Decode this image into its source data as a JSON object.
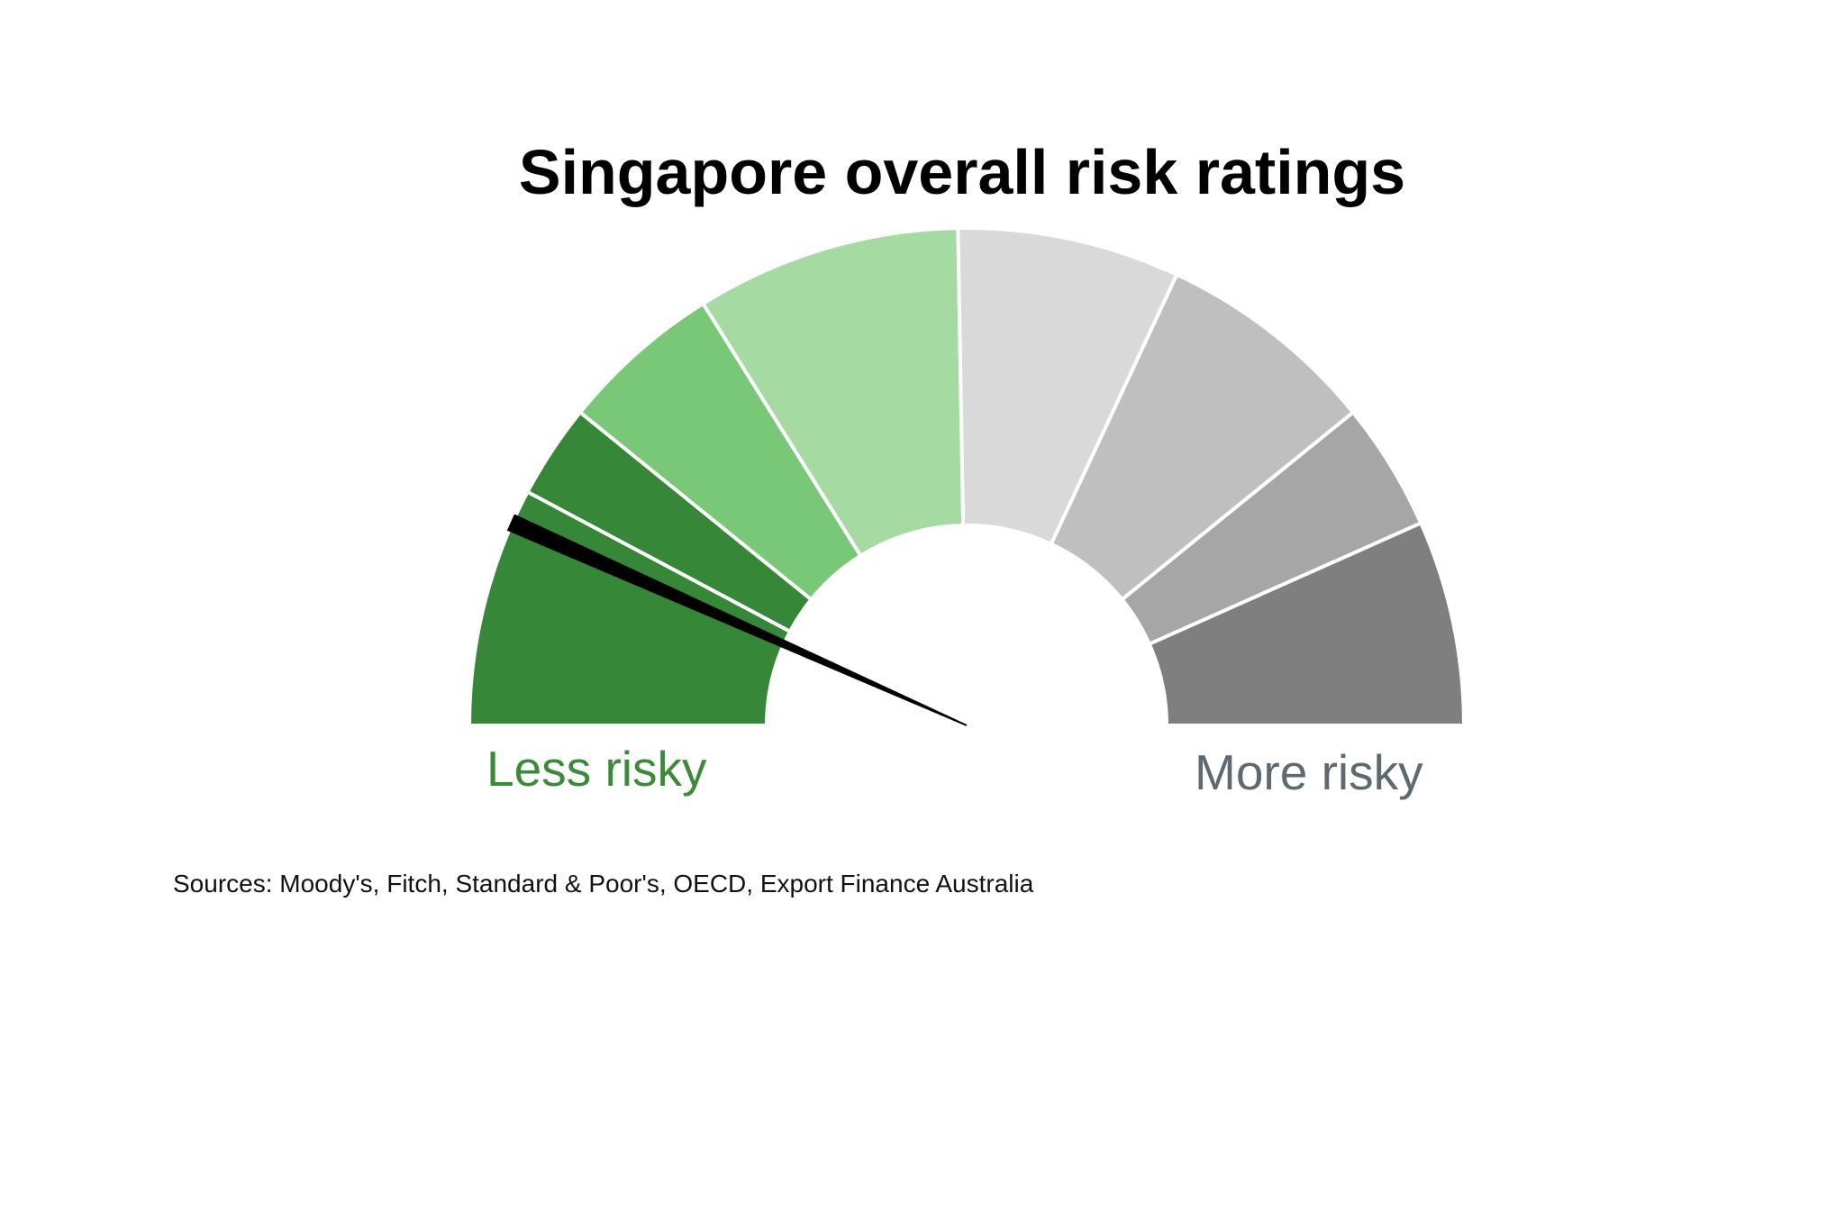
{
  "chart_data": {
    "type": "gauge",
    "title": "Singapore overall risk ratings",
    "scale_labels": {
      "low": "Less risky",
      "high": "More risky"
    },
    "bands": [
      {
        "color": "#368737"
      },
      {
        "color": "#368737"
      },
      {
        "color": "#78c878"
      },
      {
        "color": "#a5daa3"
      },
      {
        "color": "#d9d9d9"
      },
      {
        "color": "#bfbfbf"
      },
      {
        "color": "#a6a6a6"
      },
      {
        "color": "#7f7f7f"
      }
    ],
    "needle_color": "#000000"
  },
  "footer": {
    "source": "Sources: Moody's, Fitch, Standard & Poor's, OECD, Export Finance Australia"
  }
}
